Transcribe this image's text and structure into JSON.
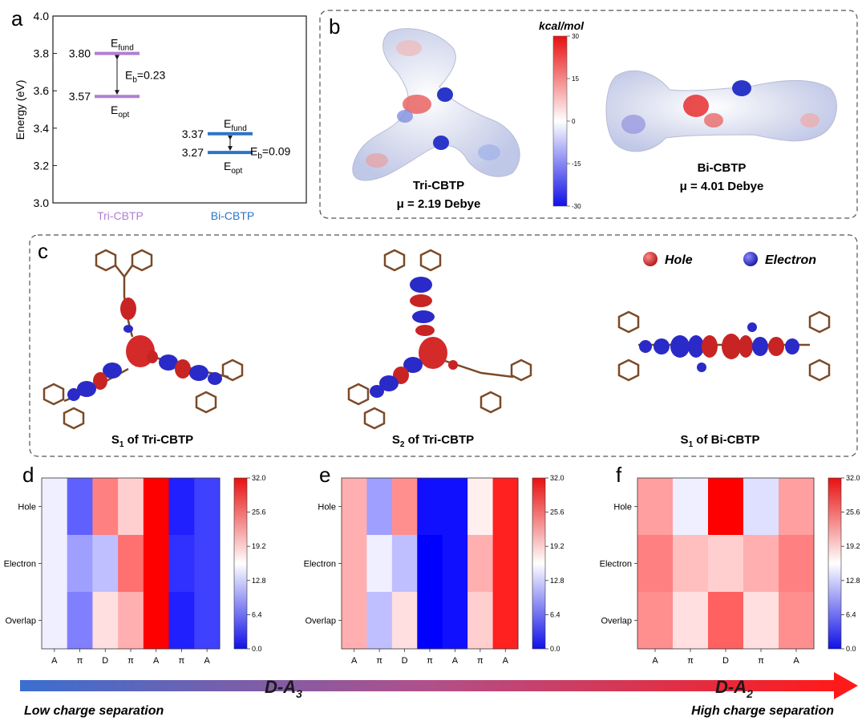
{
  "panels": {
    "a": "a",
    "b": "b",
    "c": "c",
    "d": "d",
    "e": "e",
    "f": "f"
  },
  "chart_data": [
    {
      "panel": "a",
      "type": "energy-level",
      "ylabel": "Energy (eV)",
      "ylim": [
        3.0,
        4.0
      ],
      "yticks": [
        "3.0",
        "3.2",
        "3.4",
        "3.6",
        "3.8",
        "4.0"
      ],
      "categories": [
        "Tri-CBTP",
        "Bi-CBTP"
      ],
      "category_colors": [
        "#b07fd3",
        "#2b74c8"
      ],
      "levels": [
        {
          "molecule": "Tri-CBTP",
          "E_fund": 3.8,
          "E_opt": 3.57,
          "fund_value": "3.80",
          "opt_value": "3.57",
          "fund_label": "E",
          "fund_sub": "fund",
          "opt_label": "E",
          "opt_sub": "opt",
          "eb_label": "E",
          "eb_sub": "b",
          "eb_text": "=0.23"
        },
        {
          "molecule": "Bi-CBTP",
          "E_fund": 3.37,
          "E_opt": 3.27,
          "fund_value": "3.37",
          "opt_value": "3.27",
          "fund_label": "E",
          "fund_sub": "fund",
          "opt_label": "E",
          "opt_sub": "opt",
          "eb_label": "E",
          "eb_sub": "b",
          "eb_text": "=0.09"
        }
      ]
    },
    {
      "panel": "b",
      "type": "colorbar",
      "title": "kcal/mol",
      "ticks": [
        "30",
        "15",
        "0",
        "-15",
        "-30"
      ],
      "colors": [
        "#e81010",
        "#ffffff",
        "#1010e8"
      ],
      "molecules": [
        {
          "name": "Tri-CBTP",
          "dipole": "μ = 2.19 Debye"
        },
        {
          "name": "Bi-CBTP",
          "dipole": "μ = 4.01 Debye"
        }
      ]
    },
    {
      "panel": "c",
      "type": "legend",
      "legend": [
        {
          "label": "Hole",
          "color": "#d42a2a"
        },
        {
          "label": "Electron",
          "color": "#2a2ac8"
        }
      ],
      "captions": [
        {
          "state": "S",
          "sub": "1",
          "rest": " of Tri-CBTP"
        },
        {
          "state": "S",
          "sub": "2",
          "rest": " of Tri-CBTP"
        },
        {
          "state": "S",
          "sub": "1",
          "rest": " of Bi-CBTP"
        }
      ]
    },
    {
      "panel": "d",
      "type": "heatmap",
      "rows": [
        "Hole",
        "Electron",
        "Overlap"
      ],
      "columns": [
        "A",
        "π",
        "D",
        "π",
        "A",
        "π",
        "A"
      ],
      "values": [
        [
          15,
          6,
          24,
          19,
          32,
          2,
          4
        ],
        [
          15,
          10,
          12,
          25,
          32,
          3,
          4
        ],
        [
          15,
          8,
          18,
          21,
          32,
          2,
          4
        ]
      ],
      "colorbar": {
        "min": 0,
        "max": 32,
        "ticks": [
          "32.0",
          "25.6",
          "19.2",
          "12.8",
          "6.4",
          "0.0"
        ]
      }
    },
    {
      "panel": "e",
      "type": "heatmap",
      "rows": [
        "Hole",
        "Electron",
        "Overlap"
      ],
      "columns": [
        "A",
        "π",
        "D",
        "π",
        "A",
        "π",
        "A"
      ],
      "values": [
        [
          21,
          10,
          23,
          1,
          1,
          17,
          30
        ],
        [
          21,
          15,
          12,
          0,
          1,
          21,
          30
        ],
        [
          21,
          12,
          18,
          0,
          1,
          19,
          30
        ]
      ],
      "colorbar": {
        "min": 0,
        "max": 32,
        "ticks": [
          "32.0",
          "25.6",
          "19.2",
          "12.8",
          "6.4",
          "0.0"
        ]
      }
    },
    {
      "panel": "f",
      "type": "heatmap",
      "rows": [
        "Hole",
        "Electron",
        "Overlap"
      ],
      "columns": [
        "A",
        "π",
        "D",
        "π",
        "A"
      ],
      "values": [
        [
          22,
          15,
          32,
          14,
          22
        ],
        [
          24,
          20,
          19,
          21,
          24
        ],
        [
          23,
          18,
          26,
          18,
          23
        ]
      ],
      "colorbar": {
        "min": 0,
        "max": 32,
        "ticks": [
          "32.0",
          "25.6",
          "19.2",
          "12.8",
          "6.4",
          "0.0"
        ]
      }
    }
  ],
  "arrow": {
    "left_label": "D-A",
    "left_sub": "3",
    "right_label": "D-A",
    "right_sub": "2",
    "low_text": "Low charge separation",
    "high_text": "High charge separation",
    "color_start": "#3a6fd0",
    "color_end": "#ff1a1a"
  }
}
